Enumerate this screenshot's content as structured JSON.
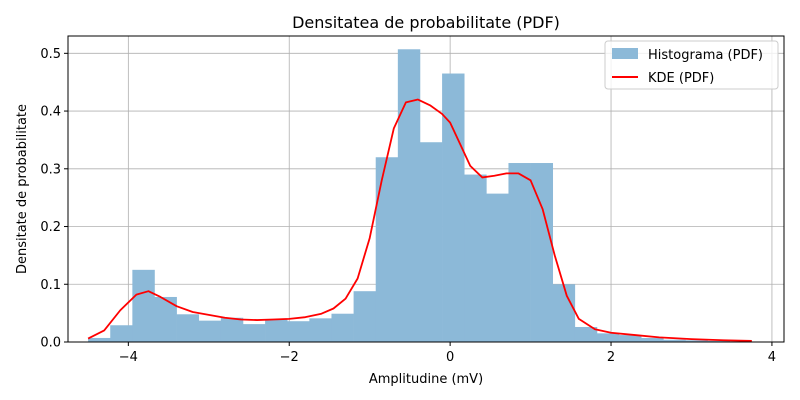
{
  "chart_data": {
    "type": "histogram+line",
    "title": "Densitatea de probabilitate (PDF)",
    "xlabel": "Amplitudine (mV)",
    "ylabel": "Densitate de probabilitate",
    "xlim": [
      -4.75,
      4.15
    ],
    "ylim": [
      0,
      0.53
    ],
    "xticks": [
      -4,
      -2,
      0,
      2,
      4
    ],
    "yticks": [
      0.0,
      0.1,
      0.2,
      0.3,
      0.4,
      0.5
    ],
    "xtick_labels": [
      "−4",
      "−2",
      "0",
      "2",
      "4"
    ],
    "ytick_labels": [
      "0.0",
      "0.1",
      "0.2",
      "0.3",
      "0.4",
      "0.5"
    ],
    "grid": true,
    "legend_position": "top-right",
    "legend": [
      "Histograma (PDF)",
      "KDE (PDF)"
    ],
    "colors": {
      "histogram": "#8cb9d8",
      "kde": "#ff0000"
    },
    "histogram": {
      "name": "Histograma (PDF)",
      "bin_edges": [
        -4.5,
        -4.225,
        -3.95,
        -3.675,
        -3.4,
        -3.125,
        -2.85,
        -2.575,
        -2.3,
        -2.025,
        -1.75,
        -1.475,
        -1.2,
        -0.925,
        -0.65,
        -0.375,
        -0.1,
        0.175,
        0.45,
        0.725,
        1.0,
        1.275,
        1.55,
        1.825,
        2.1,
        2.375,
        2.65,
        2.925,
        3.2,
        3.475,
        3.75
      ],
      "values": [
        0.007,
        0.029,
        0.125,
        0.078,
        0.048,
        0.037,
        0.042,
        0.031,
        0.039,
        0.036,
        0.041,
        0.049,
        0.088,
        0.32,
        0.507,
        0.346,
        0.465,
        0.29,
        0.257,
        0.31,
        0.31,
        0.1,
        0.026,
        0.015,
        0.012,
        0.007,
        0.004,
        0.003,
        0.002,
        0.001
      ]
    },
    "kde": {
      "name": "KDE (PDF)",
      "x": [
        -4.5,
        -4.3,
        -4.1,
        -3.9,
        -3.75,
        -3.6,
        -3.4,
        -3.2,
        -3.0,
        -2.8,
        -2.6,
        -2.4,
        -2.2,
        -2.0,
        -1.8,
        -1.6,
        -1.45,
        -1.3,
        -1.15,
        -1.0,
        -0.85,
        -0.7,
        -0.55,
        -0.4,
        -0.25,
        -0.1,
        0.0,
        0.1,
        0.25,
        0.4,
        0.55,
        0.7,
        0.85,
        1.0,
        1.15,
        1.3,
        1.45,
        1.6,
        1.8,
        2.0,
        2.3,
        2.6,
        3.0,
        3.4,
        3.75
      ],
      "y": [
        0.006,
        0.02,
        0.055,
        0.082,
        0.088,
        0.078,
        0.062,
        0.052,
        0.047,
        0.042,
        0.039,
        0.038,
        0.039,
        0.04,
        0.043,
        0.049,
        0.058,
        0.075,
        0.11,
        0.18,
        0.28,
        0.37,
        0.415,
        0.42,
        0.41,
        0.395,
        0.38,
        0.35,
        0.305,
        0.285,
        0.288,
        0.292,
        0.292,
        0.28,
        0.23,
        0.15,
        0.08,
        0.04,
        0.022,
        0.016,
        0.012,
        0.008,
        0.005,
        0.003,
        0.002
      ]
    }
  }
}
